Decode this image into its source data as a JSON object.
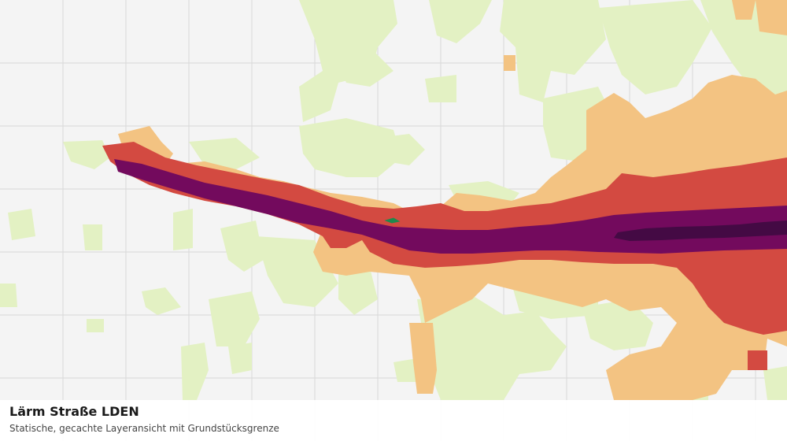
{
  "map": {
    "title": "Lärm Straße LDEN",
    "subtitle": "Statische, gecachte Layeransicht mit Grundstücksgrenze",
    "colors": {
      "background": "#f4f4f4",
      "grid": "#d9d9d9",
      "noise_low": "#e3f1c3",
      "noise_medium": "#f3c382",
      "noise_high": "#d34a41",
      "noise_very_high": "#730a5d",
      "noise_extreme": "#440a44",
      "property_boundary": "#1f8a4c"
    }
  }
}
